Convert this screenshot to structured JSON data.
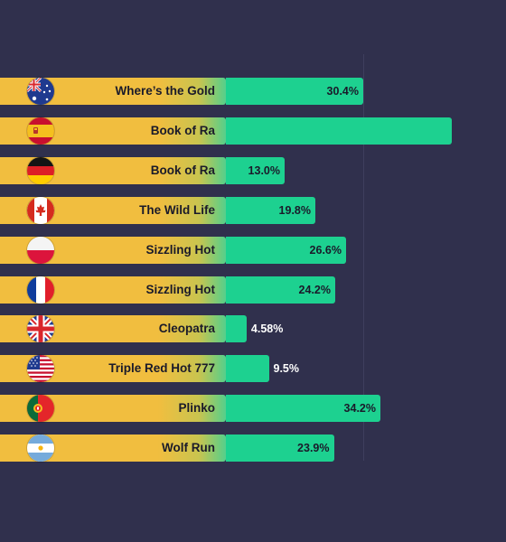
{
  "chart_data": {
    "type": "bar",
    "orientation": "horizontal",
    "title": "",
    "xlabel": "",
    "ylabel": "",
    "xlim": [
      0,
      50
    ],
    "grid": true,
    "categories": [
      "Where’s the Gold",
      "Book of Ra",
      "Book of Ra",
      "The Wild Life",
      "Sizzling Hot",
      "Sizzling Hot",
      "Cleopatra",
      "Triple Red Hot 777",
      "Plinko",
      "Wolf Run"
    ],
    "flags": [
      "australia-flag-icon",
      "spain-flag-icon",
      "germany-flag-icon",
      "canada-flag-icon",
      "poland-flag-icon",
      "france-flag-icon",
      "uk-flag-icon",
      "usa-flag-icon",
      "portugal-flag-icon",
      "argentina-flag-icon"
    ],
    "values": [
      30.4,
      50,
      13.0,
      19.8,
      26.6,
      24.2,
      4.58,
      9.5,
      34.2,
      23.9
    ],
    "value_labels": [
      "30.4%",
      "",
      "13.0%",
      "19.8%",
      "26.6%",
      "24.2%",
      "4.58%",
      "9.5%",
      "34.2%",
      "23.9%"
    ],
    "colors": {
      "background": "#30304d",
      "label_bar": "#f1be3f",
      "value_bar": "#1dd190",
      "gridline": "#3f3f5e"
    }
  }
}
